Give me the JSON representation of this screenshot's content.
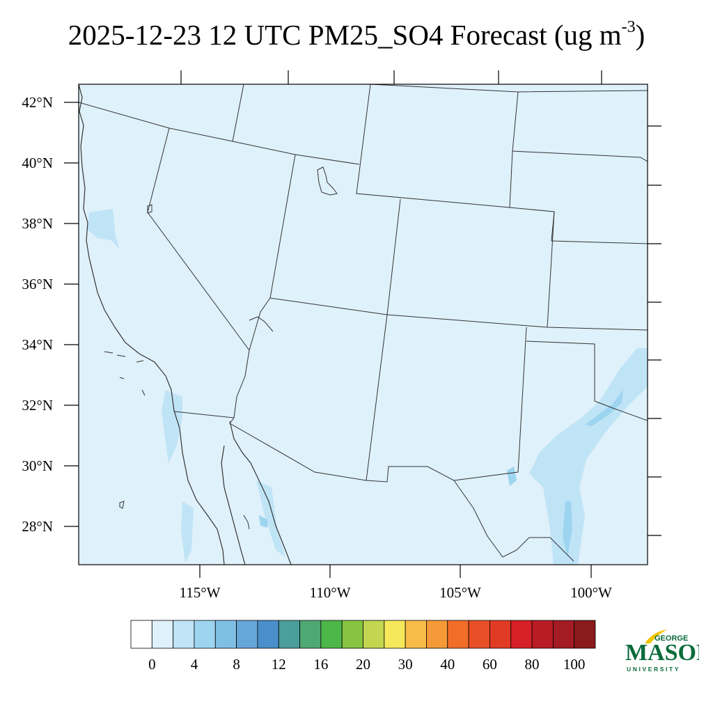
{
  "title": {
    "main": "2025-12-23 12 UTC PM25_SO4 Forecast (ug m",
    "sup": "-3",
    "close": ")"
  },
  "map": {
    "lat_ticks": [
      "42°N",
      "40°N",
      "38°N",
      "36°N",
      "34°N",
      "32°N",
      "30°N",
      "28°N"
    ],
    "lon_ticks": [
      "115°W",
      "110°W",
      "105°W",
      "100°W"
    ],
    "base_fill": "#dff1fb",
    "plume_light": "#bfe4f6",
    "plume_mid": "#9dd5f0",
    "plume_dark": "#5b9fd1",
    "border_color": "#333333"
  },
  "colorbar": {
    "colors": [
      "#ffffff",
      "#dff1fb",
      "#bfe4f6",
      "#9dd5f0",
      "#80bfe5",
      "#66a7d9",
      "#4a8fcb",
      "#4a9e9c",
      "#4ea874",
      "#4cb748",
      "#86c441",
      "#c3d64f",
      "#f6e85b",
      "#f8bc49",
      "#f59a38",
      "#f16d28",
      "#e84f27",
      "#e23b25",
      "#d71f27",
      "#ba1c25",
      "#a31b23",
      "#8b1a1c"
    ],
    "labels": [
      "0",
      "4",
      "8",
      "12",
      "16",
      "20",
      "30",
      "40",
      "60",
      "80",
      "100"
    ]
  },
  "logo": {
    "top_text": "GEORGE",
    "main_text": "MASON",
    "bottom_text": "UNIVERSITY",
    "green": "#0a6b3b",
    "gold": "#f2c500"
  }
}
